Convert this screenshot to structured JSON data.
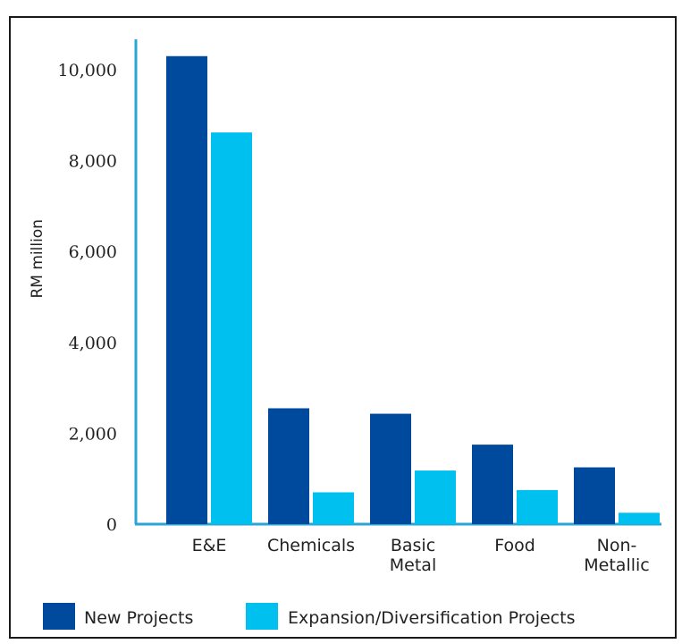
{
  "chart_data": {
    "type": "bar",
    "title": "",
    "xlabel": "",
    "ylabel": "RM million",
    "ylim": [
      0,
      10500
    ],
    "yticks": [
      "0",
      "2,000",
      "4,000",
      "6,000",
      "8,000",
      "10,000"
    ],
    "ytick_values": [
      0,
      2000,
      4000,
      6000,
      8000,
      10000
    ],
    "categories": [
      [
        "E&E"
      ],
      [
        "Chemicals"
      ],
      [
        "Basic",
        "Metal"
      ],
      [
        "Food"
      ],
      [
        "Non-",
        "Metallic"
      ]
    ],
    "series": [
      {
        "name": "New Projects",
        "color": "#004a9e",
        "values": [
          10300,
          2550,
          2430,
          1750,
          1250
        ]
      },
      {
        "name": "Expansion/Diversification Projects",
        "color": "#00c0ef",
        "values": [
          8620,
          700,
          1180,
          750,
          250
        ]
      }
    ],
    "axis_color": "#2aa6d6",
    "grid": false,
    "legend_position": "bottom"
  }
}
